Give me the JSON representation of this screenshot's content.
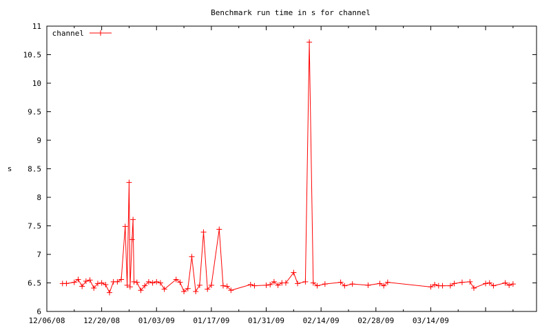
{
  "chart_data": {
    "type": "line",
    "title": "Benchmark run time in s for channel",
    "xlabel": "",
    "ylabel": "s",
    "xlim": [
      "2008-12-06",
      "2009-04-10"
    ],
    "ylim": [
      6,
      11
    ],
    "y_ticks": [
      6,
      6.5,
      7,
      7.5,
      8,
      8.5,
      9,
      9.5,
      10,
      10.5,
      11
    ],
    "y_tick_labels": [
      "6",
      "6.5",
      "7",
      "7.5",
      "8",
      "8.5",
      "9",
      "9.5",
      "10",
      "10.5",
      "11"
    ],
    "x_ticks": [
      "2008-12-06",
      "2008-12-20",
      "2009-01-03",
      "2009-01-17",
      "2009-01-31",
      "2009-02-14",
      "2009-02-28",
      "2009-03-14"
    ],
    "x_tick_labels": [
      "12/06/08",
      "12/20/08",
      "01/03/09",
      "01/17/09",
      "01/31/09",
      "02/14/09",
      "02/28/09",
      "03/14/09"
    ],
    "grid": false,
    "legend": "top-left",
    "series": [
      {
        "name": "channel",
        "color": "#ff0000",
        "marker": "plus",
        "points": [
          [
            "2008-12-10T00:00",
            6.49
          ],
          [
            "2008-12-11T00:00",
            6.49
          ],
          [
            "2008-12-13T00:00",
            6.51
          ],
          [
            "2008-12-14T00:00",
            6.56
          ],
          [
            "2008-12-15T00:00",
            6.44
          ],
          [
            "2008-12-16T00:00",
            6.53
          ],
          [
            "2008-12-17T00:00",
            6.55
          ],
          [
            "2008-12-18T00:00",
            6.41
          ],
          [
            "2008-12-19T00:00",
            6.49
          ],
          [
            "2008-12-20T00:00",
            6.5
          ],
          [
            "2008-12-21T00:00",
            6.47
          ],
          [
            "2008-12-22T00:00",
            6.33
          ],
          [
            "2008-12-23T00:00",
            6.52
          ],
          [
            "2008-12-24T00:00",
            6.52
          ],
          [
            "2008-12-25T00:00",
            6.56
          ],
          [
            "2008-12-26T00:00",
            7.49
          ],
          [
            "2008-12-26T12:00",
            6.46
          ],
          [
            "2008-12-27T00:00",
            8.26
          ],
          [
            "2008-12-27T06:00",
            6.43
          ],
          [
            "2008-12-27T18:00",
            7.26
          ],
          [
            "2008-12-28T00:00",
            7.61
          ],
          [
            "2008-12-28T06:00",
            6.52
          ],
          [
            "2008-12-29T00:00",
            6.51
          ],
          [
            "2008-12-30T00:00",
            6.37
          ],
          [
            "2008-12-31T00:00",
            6.45
          ],
          [
            "2009-01-01T00:00",
            6.52
          ],
          [
            "2009-01-02T00:00",
            6.5
          ],
          [
            "2009-01-03T00:00",
            6.52
          ],
          [
            "2009-01-04T00:00",
            6.5
          ],
          [
            "2009-01-05T00:00",
            6.39
          ],
          [
            "2009-01-08T00:00",
            6.56
          ],
          [
            "2009-01-09T00:00",
            6.51
          ],
          [
            "2009-01-10T00:00",
            6.35
          ],
          [
            "2009-01-11T00:00",
            6.4
          ],
          [
            "2009-01-12T00:00",
            6.96
          ],
          [
            "2009-01-13T00:00",
            6.35
          ],
          [
            "2009-01-14T00:00",
            6.46
          ],
          [
            "2009-01-15T00:00",
            7.39
          ],
          [
            "2009-01-16T00:00",
            6.39
          ],
          [
            "2009-01-17T00:00",
            6.46
          ],
          [
            "2009-01-19T00:00",
            7.44
          ],
          [
            "2009-01-20T00:00",
            6.45
          ],
          [
            "2009-01-21T00:00",
            6.44
          ],
          [
            "2009-01-22T00:00",
            6.37
          ],
          [
            "2009-01-27T00:00",
            6.47
          ],
          [
            "2009-01-28T00:00",
            6.45
          ],
          [
            "2009-01-31T00:00",
            6.46
          ],
          [
            "2009-02-01T00:00",
            6.47
          ],
          [
            "2009-02-02T00:00",
            6.52
          ],
          [
            "2009-02-03T00:00",
            6.46
          ],
          [
            "2009-02-04T00:00",
            6.5
          ],
          [
            "2009-02-05T00:00",
            6.5
          ],
          [
            "2009-02-07T00:00",
            6.68
          ],
          [
            "2009-02-08T00:00",
            6.49
          ],
          [
            "2009-02-10T00:00",
            6.52
          ],
          [
            "2009-02-11T00:00",
            10.72
          ],
          [
            "2009-02-12T00:00",
            6.5
          ],
          [
            "2009-02-13T00:00",
            6.45
          ],
          [
            "2009-02-15T00:00",
            6.48
          ],
          [
            "2009-02-19T00:00",
            6.51
          ],
          [
            "2009-02-20T00:00",
            6.45
          ],
          [
            "2009-02-22T00:00",
            6.48
          ],
          [
            "2009-02-26T00:00",
            6.46
          ],
          [
            "2009-03-01T00:00",
            6.49
          ],
          [
            "2009-03-02T00:00",
            6.45
          ],
          [
            "2009-03-03T00:00",
            6.51
          ],
          [
            "2009-03-14T00:00",
            6.43
          ],
          [
            "2009-03-15T00:00",
            6.47
          ],
          [
            "2009-03-16T00:00",
            6.45
          ],
          [
            "2009-03-17T00:00",
            6.45
          ],
          [
            "2009-03-19T00:00",
            6.45
          ],
          [
            "2009-03-20T00:00",
            6.49
          ],
          [
            "2009-03-22T00:00",
            6.51
          ],
          [
            "2009-03-24T00:00",
            6.52
          ],
          [
            "2009-03-25T00:00",
            6.41
          ],
          [
            "2009-03-28T00:00",
            6.49
          ],
          [
            "2009-03-29T00:00",
            6.5
          ],
          [
            "2009-03-30T00:00",
            6.45
          ],
          [
            "2009-04-02T00:00",
            6.5
          ],
          [
            "2009-04-03T00:00",
            6.46
          ],
          [
            "2009-04-04T00:00",
            6.48
          ]
        ]
      }
    ]
  }
}
